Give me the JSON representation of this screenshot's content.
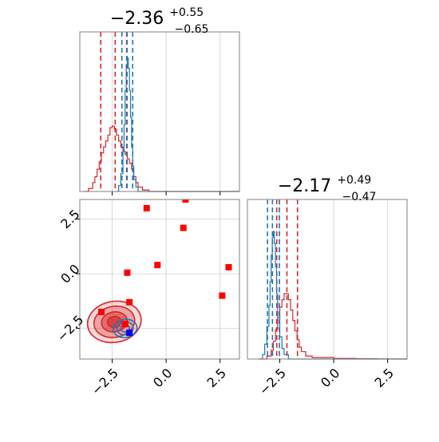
{
  "chart_data": [
    {
      "type": "histogram",
      "panel": "top-left",
      "title": {
        "median": "−2.36",
        "upper": "+0.55",
        "lower": "−0.65"
      },
      "xlim": [
        -4.0,
        3.4
      ],
      "xticks": [
        -2.5,
        0.0,
        2.5
      ],
      "xtick_labels": [
        "−2.5",
        "0.0",
        "2.5"
      ],
      "grid": true,
      "series": [
        {
          "color": "#d62728",
          "bins": [
            [
              -3.8,
              0.0
            ],
            [
              -3.6,
              0.02
            ],
            [
              -3.4,
              0.06
            ],
            [
              -3.3,
              0.1
            ],
            [
              -3.2,
              0.15
            ],
            [
              -3.1,
              0.2
            ],
            [
              -3.0,
              0.26
            ],
            [
              -2.9,
              0.3
            ],
            [
              -2.8,
              0.34
            ],
            [
              -2.7,
              0.38
            ],
            [
              -2.6,
              0.43
            ],
            [
              -2.5,
              0.44
            ],
            [
              -2.4,
              0.42
            ],
            [
              -2.3,
              0.38
            ],
            [
              -2.2,
              0.34
            ],
            [
              -2.1,
              0.3
            ],
            [
              -2.0,
              0.27
            ],
            [
              -1.9,
              0.25
            ],
            [
              -1.8,
              0.22
            ],
            [
              -1.7,
              0.19
            ],
            [
              -1.6,
              0.15
            ],
            [
              -1.5,
              0.1
            ],
            [
              -1.4,
              0.06
            ],
            [
              -1.3,
              0.03
            ],
            [
              -1.1,
              0.01
            ],
            [
              -0.8,
              0.0
            ]
          ],
          "quantile_lines": [
            -3.03,
            -2.36,
            -1.81
          ]
        },
        {
          "color": "#1f77b4",
          "bins": [
            [
              -2.3,
              0.0
            ],
            [
              -2.2,
              0.04
            ],
            [
              -2.1,
              0.12
            ],
            [
              -2.0,
              0.27
            ],
            [
              -1.95,
              0.45
            ],
            [
              -1.9,
              0.68
            ],
            [
              -1.85,
              0.85
            ],
            [
              -1.8,
              0.9
            ],
            [
              -1.75,
              0.83
            ],
            [
              -1.7,
              0.68
            ],
            [
              -1.65,
              0.5
            ],
            [
              -1.6,
              0.3
            ],
            [
              -1.55,
              0.17
            ],
            [
              -1.5,
              0.08
            ],
            [
              -1.4,
              0.03
            ],
            [
              -1.3,
              0.0
            ]
          ],
          "quantile_lines": [
            -2.05,
            -1.83,
            -1.55
          ]
        }
      ]
    },
    {
      "type": "histogram",
      "panel": "bottom-right",
      "title": {
        "median": "−2.17",
        "upper": "+0.49",
        "lower": "−0.47"
      },
      "xlim": [
        -4.0,
        3.4
      ],
      "xticks": [
        -2.5,
        0.0,
        2.5
      ],
      "xtick_labels": [
        "−2.5",
        "0.0",
        "2.5"
      ],
      "grid": true,
      "series": [
        {
          "color": "#d62728",
          "bins": [
            [
              -3.4,
              0.0
            ],
            [
              -3.1,
              0.02
            ],
            [
              -2.9,
              0.06
            ],
            [
              -2.8,
              0.12
            ],
            [
              -2.7,
              0.2
            ],
            [
              -2.6,
              0.28
            ],
            [
              -2.5,
              0.35
            ],
            [
              -2.4,
              0.4
            ],
            [
              -2.3,
              0.44
            ],
            [
              -2.2,
              0.44
            ],
            [
              -2.1,
              0.4
            ],
            [
              -2.0,
              0.33
            ],
            [
              -1.9,
              0.26
            ],
            [
              -1.8,
              0.19
            ],
            [
              -1.7,
              0.13
            ],
            [
              -1.6,
              0.08
            ],
            [
              -1.5,
              0.05
            ],
            [
              -1.3,
              0.02
            ],
            [
              -1.0,
              0.01
            ],
            [
              0.0,
              0.004
            ],
            [
              1.0,
              0.002
            ],
            [
              2.0,
              0.001
            ]
          ],
          "quantile_lines": [
            -2.64,
            -2.17,
            -1.68
          ]
        },
        {
          "color": "#1f77b4",
          "bins": [
            [
              -3.5,
              0.0
            ],
            [
              -3.3,
              0.03
            ],
            [
              -3.2,
              0.1
            ],
            [
              -3.1,
              0.22
            ],
            [
              -3.0,
              0.36
            ],
            [
              -2.95,
              0.52
            ],
            [
              -2.9,
              0.7
            ],
            [
              -2.85,
              0.82
            ],
            [
              -2.8,
              0.86
            ],
            [
              -2.75,
              0.78
            ],
            [
              -2.7,
              0.62
            ],
            [
              -2.65,
              0.44
            ],
            [
              -2.6,
              0.28
            ],
            [
              -2.5,
              0.15
            ],
            [
              -2.4,
              0.07
            ],
            [
              -2.3,
              0.03
            ],
            [
              -2.1,
              0.0
            ]
          ],
          "quantile_lines": [
            -3.07,
            -2.84,
            -2.52
          ]
        }
      ]
    },
    {
      "type": "scatter",
      "panel": "bottom-left",
      "xlim": [
        -4.0,
        3.4
      ],
      "ylim": [
        -3.9,
        3.4
      ],
      "xticks": [
        -2.5,
        0.0,
        2.5
      ],
      "yticks": [
        -2.5,
        0.0,
        2.5
      ],
      "xtick_labels": [
        "−2.5",
        "0.0",
        "2.5"
      ],
      "ytick_labels": [
        "−2.5",
        "0.0",
        "2.5"
      ],
      "grid": true,
      "contours": [
        {
          "color": "#d62728",
          "center": [
            -2.4,
            -2.2
          ],
          "radii": [
            [
              1.25,
              0.95
            ],
            [
              0.95,
              0.72
            ],
            [
              0.6,
              0.46
            ],
            [
              0.32,
              0.25
            ]
          ]
        },
        {
          "color": "#1f77b4",
          "center": [
            -1.9,
            -2.5
          ],
          "radii": [
            [
              0.55,
              0.42
            ],
            [
              0.38,
              0.3
            ],
            [
              0.2,
              0.16
            ]
          ]
        }
      ],
      "red_points": [
        [
          -0.9,
          3.0
        ],
        [
          0.9,
          3.4
        ],
        [
          0.8,
          2.1
        ],
        [
          -0.4,
          0.4
        ],
        [
          -1.8,
          0.05
        ],
        [
          2.9,
          0.3
        ],
        [
          2.6,
          -1.0
        ],
        [
          -1.7,
          -1.3
        ],
        [
          -3.0,
          -1.75
        ],
        [
          -1.9,
          -2.3
        ]
      ],
      "blue_points": [
        [
          -1.7,
          -2.7
        ]
      ]
    }
  ]
}
